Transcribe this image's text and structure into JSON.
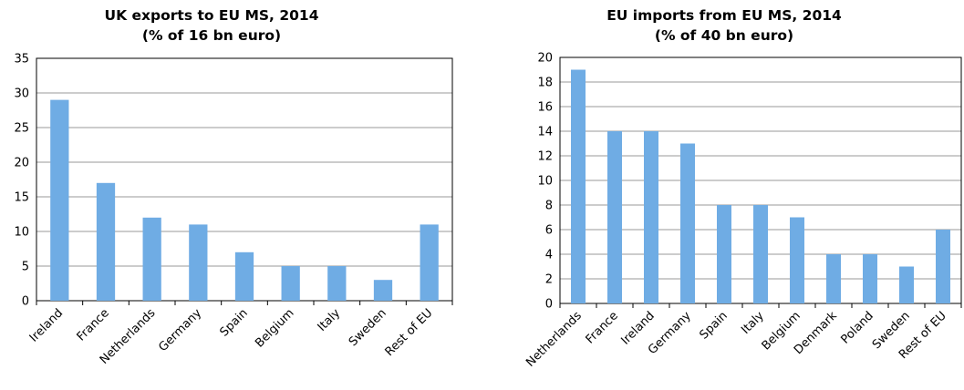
{
  "colors": {
    "bar": "#6FACE4",
    "grid": "#9A9A9A",
    "axis": "#000000"
  },
  "chart_data": [
    {
      "type": "bar",
      "title": "UK exports to EU MS, 2014",
      "subtitle": "(% of 16 bn euro)",
      "categories": [
        "Ireland",
        "France",
        "Netherlands",
        "Germany",
        "Spain",
        "Belgium",
        "Italy",
        "Sweden",
        "Rest of EU"
      ],
      "values": [
        29,
        17,
        12,
        11,
        7,
        5,
        5,
        3,
        11
      ],
      "ylim": [
        0,
        35
      ],
      "yticks": [
        0,
        5,
        10,
        15,
        20,
        25,
        30,
        35
      ],
      "grid": true,
      "legend": "none"
    },
    {
      "type": "bar",
      "title": "EU imports from EU MS, 2014",
      "subtitle": "(% of 40 bn euro)",
      "categories": [
        "Netherlands",
        "France",
        "Ireland",
        "Germany",
        "Spain",
        "Italy",
        "Belgium",
        "Denmark",
        "Poland",
        "Sweden",
        "Rest of EU"
      ],
      "values": [
        19,
        14,
        14,
        13,
        8,
        8,
        7,
        4,
        4,
        3,
        6
      ],
      "ylim": [
        0,
        20
      ],
      "yticks": [
        0,
        2,
        4,
        6,
        8,
        10,
        12,
        14,
        16,
        18,
        20
      ],
      "grid": true,
      "legend": "none"
    }
  ]
}
